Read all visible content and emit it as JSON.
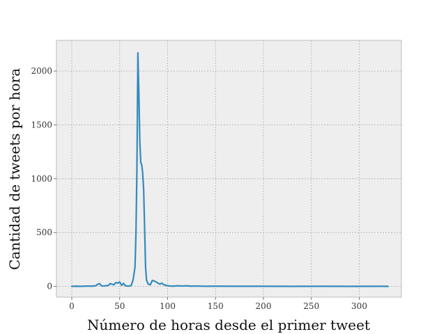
{
  "chart_data": {
    "type": "line",
    "title": "",
    "xlabel": "Número de horas desde el primer tweet",
    "ylabel": "Cantidad de tweets por hora",
    "xlim": [
      -16,
      344
    ],
    "ylim": [
      -100,
      2285
    ],
    "xticks": [
      0,
      50,
      100,
      150,
      200,
      250,
      300
    ],
    "yticks": [
      0,
      500,
      1000,
      1500,
      2000
    ],
    "grid": true,
    "colors": {
      "line": "#348ABD",
      "plot_bg": "#EEEEEE",
      "grid": "#B0B0B0",
      "frame": "#BCBCBC"
    },
    "series": [
      {
        "x": [
          0,
          5,
          10,
          15,
          20,
          25,
          27,
          29,
          31,
          33,
          35,
          38,
          40,
          42,
          44,
          46,
          48,
          50,
          52,
          54,
          56,
          58,
          60,
          62,
          64,
          66,
          67,
          68,
          69,
          70,
          71,
          72,
          73,
          74,
          75,
          76,
          77,
          78,
          79,
          80,
          82,
          84,
          86,
          88,
          90,
          92,
          94,
          96,
          98,
          100,
          103,
          106,
          110,
          115,
          120,
          125,
          130,
          140,
          150,
          170,
          200,
          230,
          260,
          290,
          320,
          330
        ],
        "y": [
          0,
          2,
          0,
          3,
          2,
          5,
          20,
          25,
          5,
          3,
          5,
          8,
          25,
          20,
          15,
          35,
          30,
          40,
          10,
          28,
          5,
          3,
          3,
          8,
          60,
          180,
          500,
          1100,
          2170,
          1800,
          1350,
          1150,
          1130,
          1050,
          900,
          550,
          180,
          60,
          35,
          20,
          15,
          55,
          50,
          40,
          30,
          20,
          30,
          15,
          10,
          5,
          3,
          2,
          5,
          3,
          5,
          2,
          3,
          1,
          2,
          1,
          1,
          0,
          1,
          0,
          1,
          0
        ]
      }
    ]
  }
}
